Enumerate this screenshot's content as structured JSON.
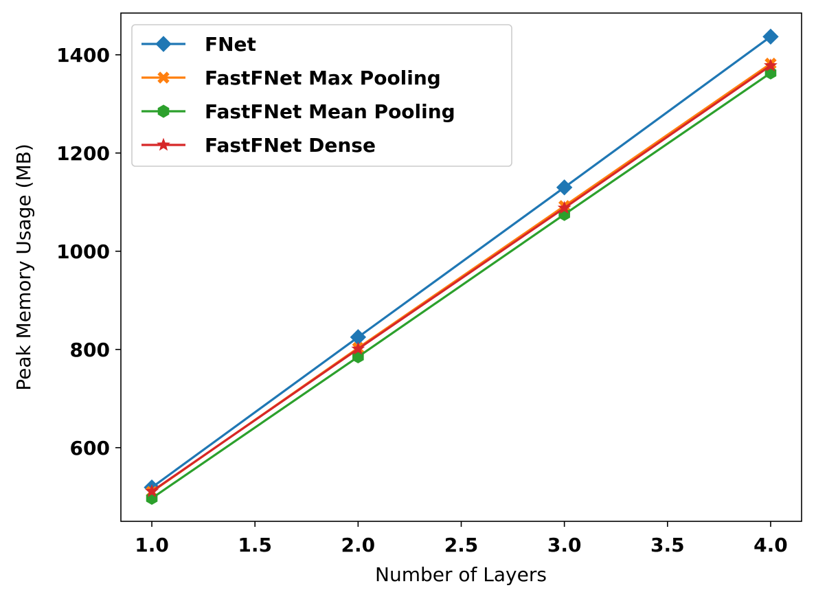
{
  "chart_data": {
    "type": "line",
    "title": "",
    "xlabel": "Number of Layers",
    "ylabel": "Peak Memory Usage (MB)",
    "xlim": [
      0.85,
      4.15
    ],
    "ylim": [
      450,
      1485
    ],
    "xticks": [
      "1.0",
      "1.5",
      "2.0",
      "2.5",
      "3.0",
      "3.5",
      "4.0"
    ],
    "yticks": [
      "600",
      "800",
      "1000",
      "1200",
      "1400"
    ],
    "grid": false,
    "legend": "top-left",
    "x": [
      1,
      2,
      3,
      4
    ],
    "series": [
      {
        "name": "FNet",
        "color": "#1f77b4",
        "marker": "diamond",
        "values": [
          519,
          825,
          1130,
          1437
        ]
      },
      {
        "name": "FastFNet Max Pooling",
        "color": "#ff7f0e",
        "marker": "x-filled",
        "values": [
          510,
          803,
          1092,
          1382
        ]
      },
      {
        "name": "FastFNet Mean Pooling",
        "color": "#2ca02c",
        "marker": "hexagon",
        "values": [
          497,
          785,
          1075,
          1363
        ]
      },
      {
        "name": "FastFNet Dense",
        "color": "#d62728",
        "marker": "star",
        "values": [
          511,
          801,
          1088,
          1378
        ]
      }
    ]
  }
}
